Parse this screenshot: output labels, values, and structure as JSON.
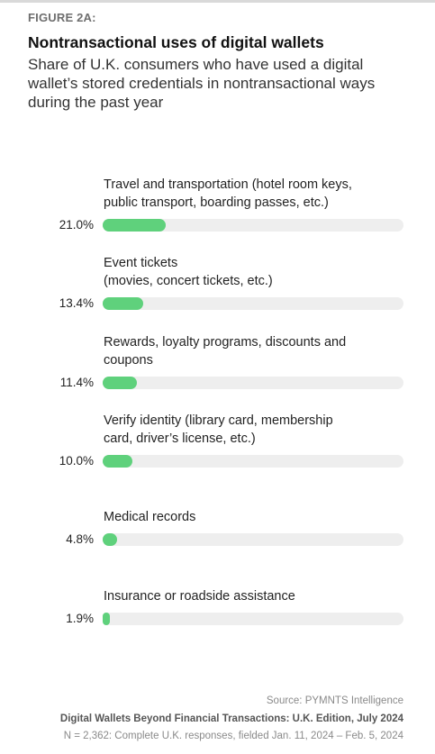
{
  "figure_label": "FIGURE 2A:",
  "footer": {
    "source": "Source: PYMNTS Intelligence",
    "report": "Digital Wallets Beyond Financial Transactions: U.K. Edition, July 2024",
    "note": "N = 2,362: Complete U.K. responses, fielded Jan. 11, 2024 – Feb. 5, 2024"
  },
  "colors": {
    "bar": "#5fd17c",
    "track": "#eeeeee"
  },
  "chart_data": {
    "type": "bar",
    "orientation": "horizontal",
    "title": "Nontransactional uses of digital wallets",
    "subtitle": "Share of U.K. consumers who have used a digital wallet’s stored credentials in nontransactional ways during the past year",
    "categories": [
      [
        "Travel and transportation (hotel room keys,",
        "public transport, boarding passes, etc.)"
      ],
      [
        "Event tickets",
        "(movies, concert tickets, etc.)"
      ],
      [
        "Rewards, loyalty programs, discounts and",
        "coupons"
      ],
      [
        "Verify identity (library card, membership",
        "card, driver’s license, etc.)"
      ],
      [
        "Medical records"
      ],
      [
        "Insurance or roadside assistance"
      ]
    ],
    "values": [
      21.0,
      13.4,
      11.4,
      10.0,
      4.8,
      1.9
    ],
    "value_labels": [
      "21.0%",
      "13.4%",
      "11.4%",
      "10.0%",
      "4.8%",
      "1.9%"
    ],
    "xlim": [
      0,
      100
    ],
    "unit": "%"
  }
}
